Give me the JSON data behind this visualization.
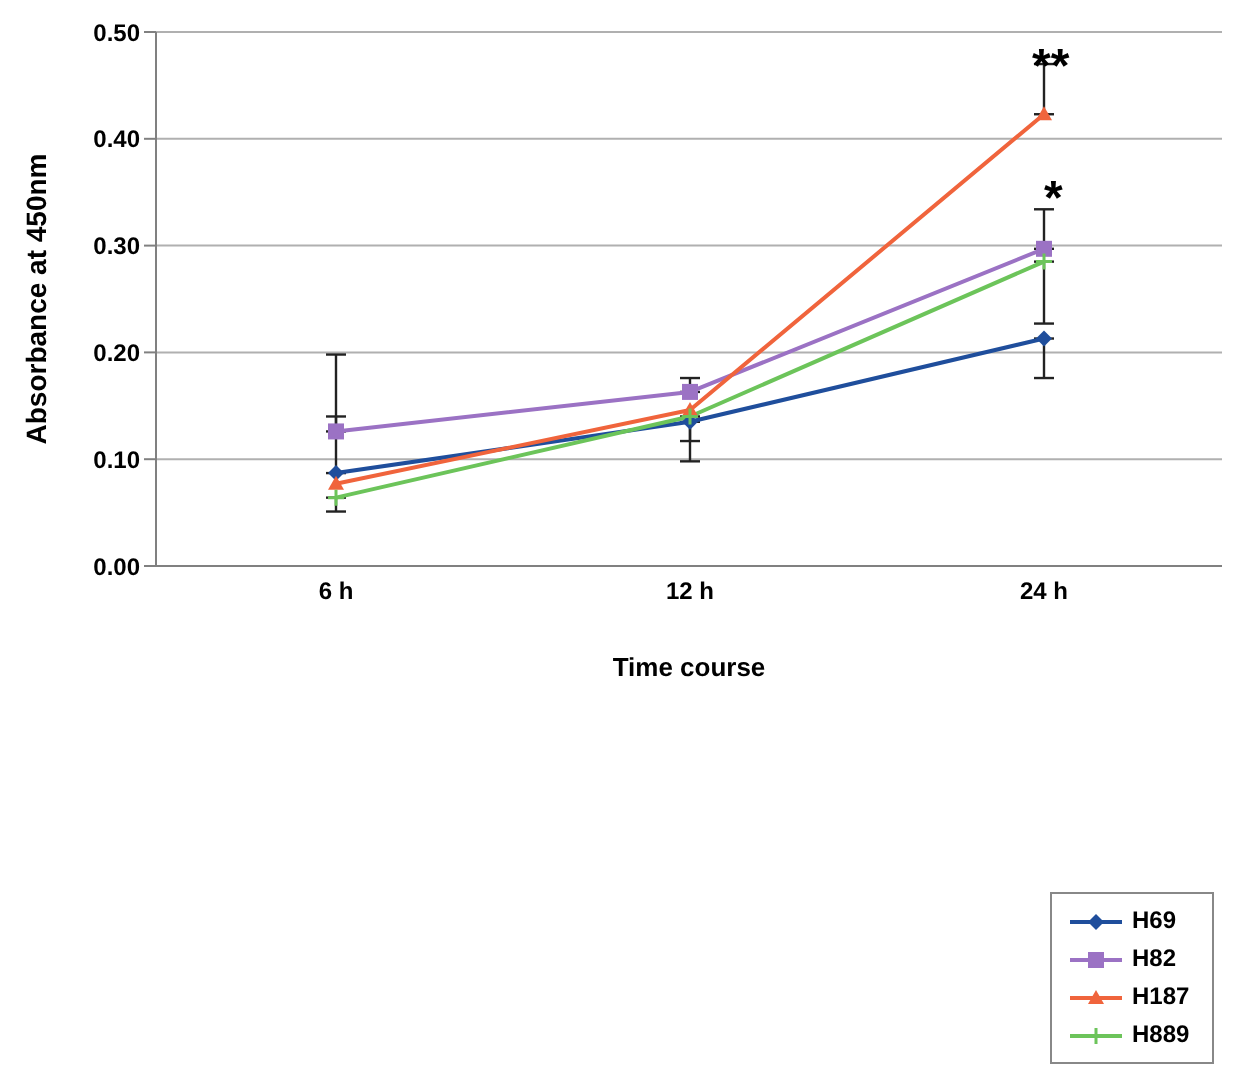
{
  "chart_data": {
    "type": "line",
    "xlabel": "Time course",
    "ylabel": "Absorbance at 450nm",
    "categories": [
      "6 h",
      "12 h",
      "24 h"
    ],
    "series": [
      {
        "name": "H69",
        "color": "#1f4e9c",
        "marker": "diamond",
        "values": [
          0.087,
          0.135,
          0.213
        ],
        "errors": [
          [
            0.087,
            0.14
          ],
          [
            0.098,
            0.135
          ],
          [
            0.176,
            0.213
          ]
        ]
      },
      {
        "name": "H82",
        "color": "#9b72c4",
        "marker": "square",
        "values": [
          0.126,
          0.163,
          0.297
        ],
        "errors": [
          [
            0.126,
            0.198
          ],
          [
            0.163,
            0.176
          ],
          [
            0.297,
            0.334
          ]
        ]
      },
      {
        "name": "H187",
        "color": "#f0643c",
        "marker": "triangle",
        "values": [
          0.077,
          0.146,
          0.423
        ],
        "errors": [
          null,
          null,
          [
            0.423,
            0.47
          ]
        ]
      },
      {
        "name": "H889",
        "color": "#6cc45a",
        "marker": "cross",
        "values": [
          0.064,
          0.14,
          0.285
        ],
        "errors": [
          [
            0.051,
            0.064
          ],
          [
            0.117,
            0.14
          ],
          [
            0.227,
            0.285
          ]
        ]
      }
    ],
    "ylim": [
      0,
      0.5
    ],
    "yticks": [
      {
        "value": 0,
        "label": "0.00"
      },
      {
        "value": 0.1,
        "label": "0.10"
      },
      {
        "value": 0.2,
        "label": "0.20"
      },
      {
        "value": 0.3,
        "label": "0.30"
      },
      {
        "value": 0.4,
        "label": "0.40"
      },
      {
        "value": 0.5,
        "label": "0.50"
      }
    ],
    "grid": "y",
    "legend": "bottom right",
    "line_style": "solid",
    "annotations": [
      "**",
      "*"
    ]
  }
}
